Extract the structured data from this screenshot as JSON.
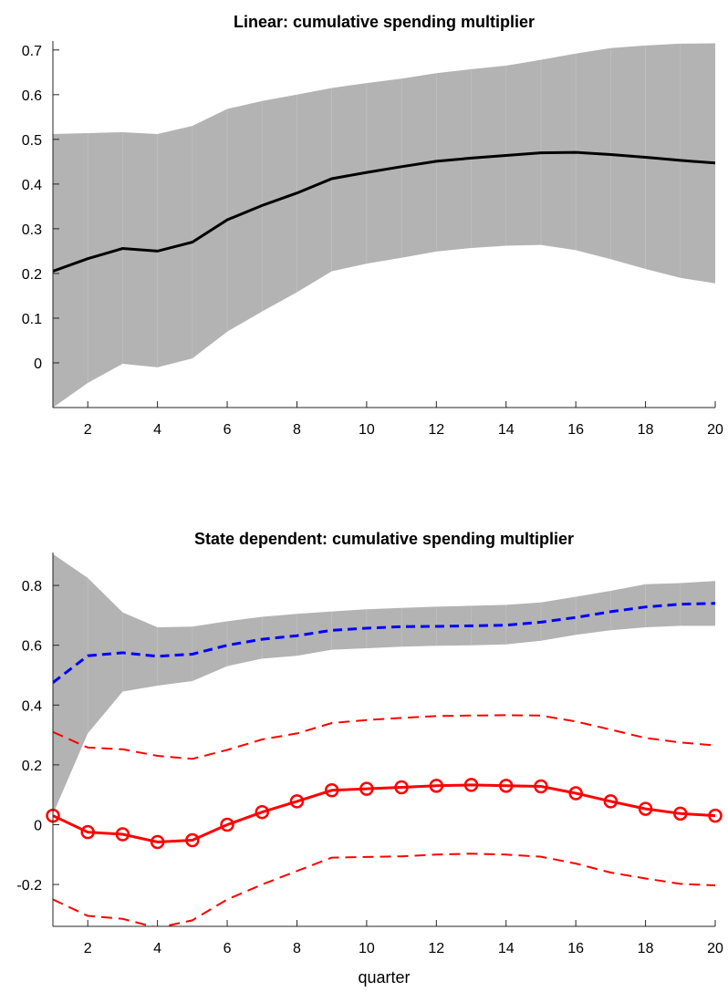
{
  "chart_data": [
    {
      "type": "line",
      "title": "Linear: cumulative spending multiplier",
      "xlabel": "",
      "ylabel": "",
      "xlim": [
        1,
        20
      ],
      "ylim": [
        -0.1,
        0.72
      ],
      "xticks": [
        2,
        4,
        6,
        8,
        10,
        12,
        14,
        16,
        18,
        20
      ],
      "xtick_labels": [
        "2",
        "4",
        "6",
        "8",
        "10",
        "12",
        "14",
        "16",
        "18",
        "20"
      ],
      "yticks": [
        0,
        0.1,
        0.2,
        0.3,
        0.4,
        0.5,
        0.6,
        0.7
      ],
      "ytick_labels": [
        "0",
        "0.1",
        "0.2",
        "0.3",
        "0.4",
        "0.5",
        "0.6",
        "0.7"
      ],
      "grid": false,
      "x": [
        1,
        2,
        3,
        4,
        5,
        6,
        7,
        8,
        9,
        10,
        11,
        12,
        13,
        14,
        15,
        16,
        17,
        18,
        19,
        20
      ],
      "band": {
        "color": "#b3b3b3",
        "upper": [
          0.512,
          0.514,
          0.516,
          0.512,
          0.53,
          0.568,
          0.586,
          0.6,
          0.615,
          0.626,
          0.636,
          0.648,
          0.657,
          0.665,
          0.678,
          0.692,
          0.704,
          0.71,
          0.714,
          0.715
        ],
        "lower": [
          -0.1,
          -0.045,
          -0.002,
          -0.01,
          0.01,
          0.07,
          0.115,
          0.158,
          0.205,
          0.222,
          0.235,
          0.249,
          0.257,
          0.262,
          0.264,
          0.252,
          0.232,
          0.21,
          0.19,
          0.178
        ]
      },
      "series": [
        {
          "color": "#000000",
          "style": "solid",
          "values": [
            0.205,
            0.233,
            0.256,
            0.25,
            0.27,
            0.32,
            0.352,
            0.38,
            0.412,
            0.426,
            0.439,
            0.451,
            0.458,
            0.464,
            0.47,
            0.471,
            0.466,
            0.46,
            0.453,
            0.447
          ]
        }
      ]
    },
    {
      "type": "line",
      "title": "State dependent: cumulative spending multiplier",
      "xlabel": "quarter",
      "ylabel": "",
      "xlim": [
        1,
        20
      ],
      "ylim": [
        -0.34,
        0.91
      ],
      "xticks": [
        2,
        4,
        6,
        8,
        10,
        12,
        14,
        16,
        18,
        20
      ],
      "xtick_labels": [
        "2",
        "4",
        "6",
        "8",
        "10",
        "12",
        "14",
        "16",
        "18",
        "20"
      ],
      "yticks": [
        -0.2,
        0,
        0.2,
        0.4,
        0.6,
        0.8
      ],
      "ytick_labels": [
        "-0.2",
        "0",
        "0.2",
        "0.4",
        "0.6",
        "0.8"
      ],
      "grid": false,
      "x": [
        1,
        2,
        3,
        4,
        5,
        6,
        7,
        8,
        9,
        10,
        11,
        12,
        13,
        14,
        15,
        16,
        17,
        18,
        19,
        20
      ],
      "band": {
        "color": "#b3b3b3",
        "upper": [
          0.905,
          0.825,
          0.71,
          0.66,
          0.662,
          0.68,
          0.695,
          0.705,
          0.713,
          0.72,
          0.725,
          0.729,
          0.732,
          0.735,
          0.743,
          0.762,
          0.782,
          0.804,
          0.808,
          0.815
        ],
        "lower": [
          0.035,
          0.305,
          0.445,
          0.465,
          0.48,
          0.53,
          0.555,
          0.565,
          0.585,
          0.59,
          0.595,
          0.598,
          0.6,
          0.603,
          0.615,
          0.635,
          0.65,
          0.66,
          0.665,
          0.665
        ]
      },
      "series": [
        {
          "color": "#0000ff",
          "style": "dashed-bold",
          "values": [
            0.475,
            0.565,
            0.575,
            0.563,
            0.57,
            0.6,
            0.62,
            0.632,
            0.65,
            0.657,
            0.662,
            0.663,
            0.665,
            0.667,
            0.677,
            0.693,
            0.712,
            0.728,
            0.737,
            0.74
          ]
        },
        {
          "color": "#ff0000",
          "style": "solid-circles",
          "values": [
            0.03,
            -0.025,
            -0.032,
            -0.058,
            -0.052,
            0.0,
            0.042,
            0.078,
            0.115,
            0.12,
            0.125,
            0.13,
            0.133,
            0.13,
            0.128,
            0.105,
            0.078,
            0.053,
            0.037,
            0.03
          ]
        },
        {
          "color": "#ff0000",
          "style": "dashed-thin",
          "values": [
            0.31,
            0.258,
            0.252,
            0.23,
            0.22,
            0.25,
            0.285,
            0.305,
            0.34,
            0.35,
            0.357,
            0.363,
            0.365,
            0.366,
            0.365,
            0.345,
            0.318,
            0.29,
            0.275,
            0.265
          ]
        },
        {
          "color": "#ff0000",
          "style": "dashed-thin",
          "values": [
            -0.25,
            -0.305,
            -0.315,
            -0.345,
            -0.32,
            -0.25,
            -0.2,
            -0.155,
            -0.11,
            -0.108,
            -0.106,
            -0.1,
            -0.097,
            -0.1,
            -0.107,
            -0.13,
            -0.16,
            -0.18,
            -0.198,
            -0.203
          ]
        }
      ]
    }
  ]
}
